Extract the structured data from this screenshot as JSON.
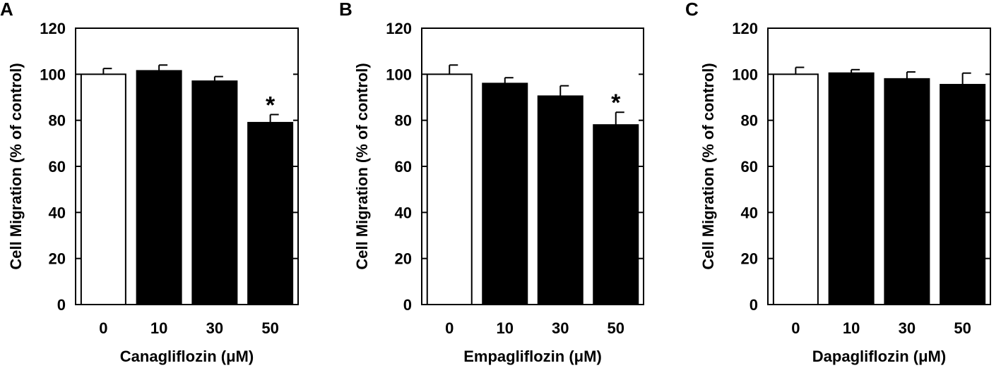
{
  "chart_data": [
    {
      "type": "bar",
      "panel_label": "A",
      "categories": [
        "0",
        "10",
        "30",
        "50"
      ],
      "values": [
        100,
        101.5,
        97,
        79
      ],
      "errors": [
        2.5,
        2.5,
        2,
        3.5
      ],
      "significance": [
        "",
        "",
        "",
        "*"
      ],
      "bar_colors": [
        "#ffffff",
        "#000000",
        "#000000",
        "#000000"
      ],
      "xlabel": "Canagliflozin (μM)",
      "ylabel": "Cell Migration (% of control)",
      "ylim": [
        0,
        120
      ],
      "yticks": [
        "0",
        "20",
        "40",
        "60",
        "80",
        "100",
        "120"
      ],
      "grid": false,
      "legend": "none"
    },
    {
      "type": "bar",
      "panel_label": "B",
      "categories": [
        "0",
        "10",
        "30",
        "50"
      ],
      "values": [
        100,
        96,
        90.5,
        78
      ],
      "errors": [
        4,
        2.5,
        4.5,
        5.5
      ],
      "significance": [
        "",
        "",
        "",
        "*"
      ],
      "bar_colors": [
        "#ffffff",
        "#000000",
        "#000000",
        "#000000"
      ],
      "xlabel": "Empagliflozin (μM)",
      "ylabel": "Cell Migration (% of control)",
      "ylim": [
        0,
        120
      ],
      "yticks": [
        "0",
        "20",
        "40",
        "60",
        "80",
        "100",
        "120"
      ],
      "grid": false,
      "legend": "none"
    },
    {
      "type": "bar",
      "panel_label": "C",
      "categories": [
        "0",
        "10",
        "30",
        "50"
      ],
      "values": [
        100,
        100.5,
        98,
        95.5
      ],
      "errors": [
        3,
        1.5,
        3,
        5
      ],
      "significance": [
        "",
        "",
        "",
        ""
      ],
      "bar_colors": [
        "#ffffff",
        "#000000",
        "#000000",
        "#000000"
      ],
      "xlabel": "Dapagliflozin (μM)",
      "ylabel": "Cell Migration (% of control)",
      "ylim": [
        0,
        120
      ],
      "yticks": [
        "0",
        "20",
        "40",
        "60",
        "80",
        "100",
        "120"
      ],
      "grid": false,
      "legend": "none"
    }
  ]
}
